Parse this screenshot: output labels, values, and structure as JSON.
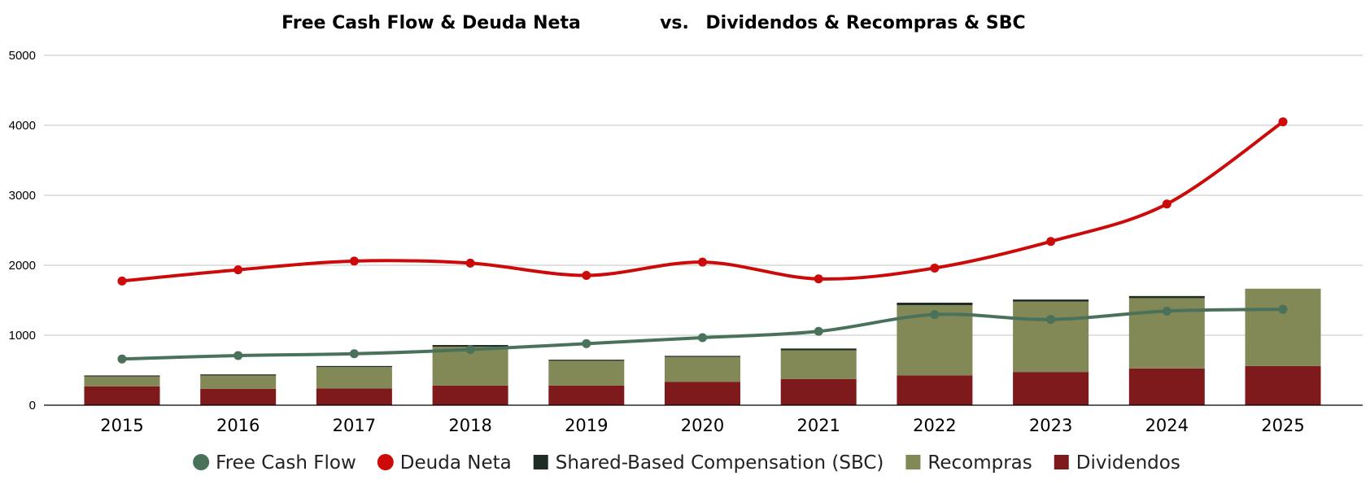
{
  "chart_data": {
    "type": "bar",
    "title_parts": [
      "Free Cash Flow  &  Deuda Neta",
      "vs.",
      "Dividendos  &  Recompras & SBC"
    ],
    "categories": [
      "2015",
      "2016",
      "2017",
      "2018",
      "2019",
      "2020",
      "2021",
      "2022",
      "2023",
      "2024",
      "2025"
    ],
    "ylim": [
      0,
      5000
    ],
    "yticks": [
      "0",
      "1000",
      "2000",
      "3000",
      "4000",
      "5000"
    ],
    "grid": true,
    "legend_position": "bottom",
    "stacked_bars": [
      {
        "name": "Dividendos",
        "color": "#7f1a1c",
        "values": [
          270,
          235,
          240,
          280,
          280,
          335,
          375,
          425,
          475,
          525,
          560
        ]
      },
      {
        "name": "Recompras",
        "color": "#838857",
        "values": [
          140,
          190,
          305,
          555,
          355,
          355,
          410,
          1005,
          1005,
          1005,
          1105
        ]
      },
      {
        "name": "Shared-Based Compensation (SBC)",
        "color": "#1f2b25",
        "values": [
          15,
          15,
          15,
          25,
          15,
          15,
          25,
          35,
          30,
          30,
          0
        ]
      }
    ],
    "line_series": [
      {
        "name": "Free Cash Flow",
        "color": "#4a725b",
        "values": [
          660,
          710,
          735,
          795,
          880,
          965,
          1055,
          1295,
          1225,
          1345,
          1370
        ]
      },
      {
        "name": "Deuda Neta",
        "color": "#cc0a0a",
        "values": [
          1775,
          1935,
          2060,
          2030,
          1855,
          2045,
          1805,
          1960,
          2340,
          2875,
          4050
        ]
      }
    ],
    "legend": [
      {
        "label": "Free Cash Flow",
        "marker": "circle",
        "color": "#4a725b"
      },
      {
        "label": "Deuda Neta",
        "marker": "circle",
        "color": "#cc0a0a"
      },
      {
        "label": "Shared-Based Compensation (SBC)",
        "marker": "square",
        "color": "#1f2b25"
      },
      {
        "label": "Recompras",
        "marker": "square",
        "color": "#838857"
      },
      {
        "label": "Dividendos",
        "marker": "square",
        "color": "#7f1a1c"
      }
    ]
  }
}
